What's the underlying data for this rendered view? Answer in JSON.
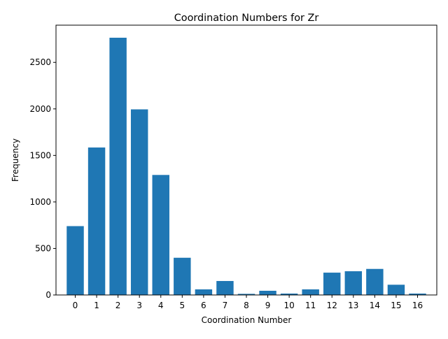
{
  "chart_data": {
    "type": "bar",
    "title": "Coordination Numbers for Zr",
    "xlabel": "Coordination Number",
    "ylabel": "Frequency",
    "categories": [
      "0",
      "1",
      "2",
      "3",
      "4",
      "5",
      "6",
      "7",
      "8",
      "9",
      "10",
      "11",
      "12",
      "13",
      "14",
      "15",
      "16"
    ],
    "values": [
      740,
      1585,
      2765,
      1995,
      1290,
      400,
      60,
      150,
      12,
      45,
      15,
      60,
      240,
      255,
      280,
      110,
      15
    ],
    "ylim": [
      0,
      2900
    ],
    "yticks": [
      0,
      500,
      1000,
      1500,
      2000,
      2500
    ],
    "grid": false,
    "bar_color": "#1f77b4"
  }
}
